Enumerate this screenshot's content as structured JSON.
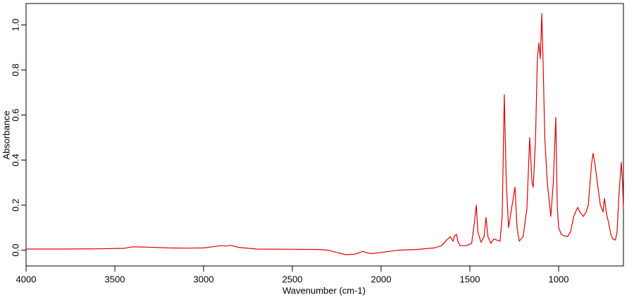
{
  "chart_data": {
    "type": "line",
    "xlabel": "Wavenumber (cm-1)",
    "ylabel": "Absorbance",
    "color": "#e00000",
    "x": [
      4000,
      3800,
      3600,
      3450,
      3400,
      3350,
      3300,
      3200,
      3100,
      3000,
      2950,
      2900,
      2870,
      2850,
      2800,
      2700,
      2500,
      2350,
      2300,
      2250,
      2200,
      2150,
      2100,
      2080,
      2050,
      2000,
      1950,
      1900,
      1800,
      1700,
      1660,
      1630,
      1610,
      1595,
      1585,
      1575,
      1568,
      1555,
      1520,
      1490,
      1475,
      1464,
      1455,
      1437,
      1420,
      1409,
      1398,
      1381,
      1365,
      1349,
      1330,
      1318,
      1306,
      1295,
      1282,
      1262,
      1246,
      1234,
      1222,
      1200,
      1185,
      1179,
      1163,
      1150,
      1143,
      1130,
      1120,
      1111,
      1103,
      1095,
      1088,
      1078,
      1064,
      1044,
      1030,
      1016,
      1008,
      1000,
      985,
      972,
      950,
      933,
      915,
      893,
      881,
      861,
      845,
      833,
      815,
      806,
      795,
      782,
      765,
      750,
      742,
      730,
      718,
      706,
      695,
      680,
      671,
      660,
      647,
      640,
      635
    ],
    "values": [
      0.005,
      0.005,
      0.006,
      0.008,
      0.015,
      0.014,
      0.013,
      0.01,
      0.009,
      0.01,
      0.015,
      0.02,
      0.018,
      0.022,
      0.012,
      0.005,
      0.004,
      0.003,
      0.0,
      -0.01,
      -0.02,
      -0.018,
      -0.005,
      -0.012,
      -0.015,
      -0.01,
      -0.005,
      0.0,
      0.003,
      0.01,
      0.02,
      0.045,
      0.06,
      0.04,
      0.065,
      0.07,
      0.04,
      0.02,
      0.02,
      0.03,
      0.12,
      0.2,
      0.08,
      0.035,
      0.06,
      0.145,
      0.06,
      0.03,
      0.05,
      0.045,
      0.04,
      0.15,
      0.69,
      0.3,
      0.1,
      0.2,
      0.28,
      0.1,
      0.04,
      0.06,
      0.15,
      0.18,
      0.5,
      0.3,
      0.28,
      0.5,
      0.85,
      0.92,
      0.85,
      1.05,
      0.85,
      0.5,
      0.3,
      0.15,
      0.3,
      0.59,
      0.2,
      0.1,
      0.07,
      0.065,
      0.06,
      0.08,
      0.15,
      0.19,
      0.17,
      0.15,
      0.17,
      0.2,
      0.38,
      0.43,
      0.38,
      0.3,
      0.2,
      0.17,
      0.23,
      0.16,
      0.12,
      0.07,
      0.05,
      0.045,
      0.08,
      0.25,
      0.39,
      0.3,
      0.18
    ],
    "xlim": [
      4000,
      635
    ],
    "xticks": [
      4000,
      3500,
      3000,
      2500,
      2000,
      1500,
      1000
    ],
    "ylim": [
      -0.07,
      1.095
    ],
    "yticks": [
      {
        "value": 0,
        "label": "0.0"
      },
      0.2,
      0.4,
      0.6,
      0.8,
      {
        "value": 1,
        "label": "1.0"
      }
    ]
  }
}
